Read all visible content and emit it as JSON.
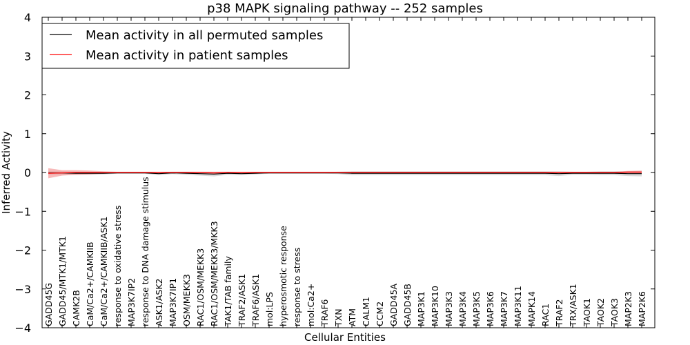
{
  "chart_data": {
    "type": "line",
    "title": "p38 MAPK signaling pathway -- 252 samples",
    "xlabel": "Cellular Entities",
    "ylabel": "Inferred Activity",
    "ylim": [
      -4,
      4
    ],
    "yticks": [
      -4,
      -3,
      -2,
      -1,
      0,
      1,
      2,
      3,
      4
    ],
    "ytick_labels": [
      "−4",
      "−3",
      "−2",
      "−1",
      "0",
      "1",
      "2",
      "3",
      "4"
    ],
    "legend_position": "top-left",
    "categories": [
      "GADD45G",
      "GADD45/MTK1/MTK1",
      "CAMK2B",
      "CaM/Ca2+/CAMKIIB",
      "CaM/Ca2+/CAMKIIB/ASK1",
      "response to oxidative stress",
      "MAP3K7IP2",
      "response to DNA damage stimulus",
      "ASK1/ASK2",
      "MAP3K7IP1",
      "OSM/MEKK3",
      "RAC1/OSM/MEKK3",
      "RAC1/OSM/MEKK3/MKK3",
      "TAK1/TAB family",
      "TRAF2/ASK1",
      "TRAF6/ASK1",
      "mol:LPS",
      "hyperosmotic response",
      "response to stress",
      "mol:Ca2+",
      "TRAF6",
      "TXN",
      "ATM",
      "CALM1",
      "CCM2",
      "GADD45A",
      "GADD45B",
      "MAP3K1",
      "MAP3K10",
      "MAP3K3",
      "MAP3K4",
      "MAP3K5",
      "MAP3K6",
      "MAP3K7",
      "MAP3K11",
      "MAPK14",
      "RAC1",
      "TRAF2",
      "TRX/ASK1",
      "TAOK1",
      "TAOK2",
      "TAOK3",
      "MAP2K3",
      "MAP2K6"
    ],
    "series": [
      {
        "name": "Mean activity in all permuted samples",
        "color": "#000000",
        "band_color": "#b0b0b0",
        "values": [
          -0.01,
          -0.01,
          -0.02,
          -0.02,
          -0.02,
          -0.01,
          -0.01,
          -0.01,
          -0.03,
          -0.01,
          -0.02,
          -0.03,
          -0.04,
          -0.02,
          -0.03,
          -0.02,
          -0.01,
          -0.01,
          -0.01,
          -0.01,
          -0.01,
          -0.01,
          -0.02,
          -0.02,
          -0.02,
          -0.02,
          -0.02,
          -0.02,
          -0.02,
          -0.02,
          -0.02,
          -0.02,
          -0.02,
          -0.02,
          -0.02,
          -0.02,
          -0.02,
          -0.03,
          -0.02,
          -0.02,
          -0.02,
          -0.02,
          -0.03,
          -0.03
        ],
        "spread": [
          0.04,
          0.04,
          0.04,
          0.04,
          0.03,
          0.02,
          0.02,
          0.02,
          0.04,
          0.03,
          0.04,
          0.05,
          0.06,
          0.04,
          0.04,
          0.03,
          0.02,
          0.02,
          0.02,
          0.02,
          0.02,
          0.03,
          0.05,
          0.05,
          0.05,
          0.05,
          0.05,
          0.05,
          0.05,
          0.05,
          0.05,
          0.05,
          0.05,
          0.05,
          0.05,
          0.05,
          0.05,
          0.06,
          0.04,
          0.04,
          0.05,
          0.05,
          0.06,
          0.07
        ]
      },
      {
        "name": "Mean activity in patient samples",
        "color": "#ff0000",
        "band_color": "#f08080",
        "values": [
          -0.02,
          -0.01,
          0.0,
          0.0,
          0.0,
          0.0,
          0.0,
          0.0,
          0.0,
          0.0,
          0.0,
          0.0,
          -0.01,
          0.0,
          0.0,
          0.0,
          0.0,
          0.0,
          0.0,
          0.0,
          0.0,
          0.0,
          0.0,
          0.0,
          0.0,
          0.0,
          0.0,
          0.0,
          0.0,
          0.0,
          0.0,
          0.0,
          0.0,
          0.0,
          0.0,
          0.0,
          0.0,
          0.0,
          0.0,
          0.0,
          0.0,
          0.0,
          0.01,
          0.01
        ],
        "spread": [
          0.13,
          0.07,
          0.06,
          0.05,
          0.03,
          0.02,
          0.02,
          0.02,
          0.02,
          0.02,
          0.02,
          0.02,
          0.03,
          0.02,
          0.02,
          0.02,
          0.02,
          0.02,
          0.02,
          0.02,
          0.02,
          0.02,
          0.02,
          0.02,
          0.02,
          0.02,
          0.02,
          0.02,
          0.02,
          0.02,
          0.02,
          0.02,
          0.02,
          0.02,
          0.02,
          0.02,
          0.02,
          0.02,
          0.02,
          0.02,
          0.02,
          0.02,
          0.03,
          0.04
        ]
      }
    ]
  }
}
